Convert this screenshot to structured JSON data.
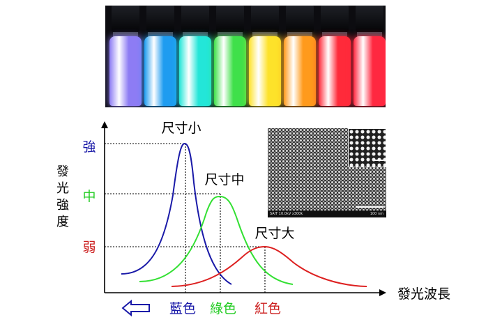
{
  "photo": {
    "vial_colors": [
      "#8d7cf4",
      "#1e9cf0",
      "#23e6d8",
      "#3fe04a",
      "#fde22a",
      "#ff9a1c",
      "#ff2a3a",
      "#ff2840"
    ]
  },
  "sem": {
    "footer_text": "SAIT 10.0kV x300k",
    "scale_label": "100 nm"
  },
  "diagram": {
    "y_axis_label": [
      "發",
      "光",
      "強",
      "度"
    ],
    "x_axis_label": "發光波長",
    "levels": [
      {
        "label": "強",
        "color": "#1a1aa8"
      },
      {
        "label": "中",
        "color": "#22cc22"
      },
      {
        "label": "弱",
        "color": "#cc2020"
      }
    ],
    "curves": [
      {
        "label": "尺寸小",
        "color": "#1a1aa8",
        "peak_level": "強"
      },
      {
        "label": "尺寸中",
        "color": "#33e033",
        "peak_level": "中"
      },
      {
        "label": "尺寸大",
        "color": "#dd2020",
        "peak_level": "弱"
      }
    ],
    "colors_bottom": [
      {
        "label": "藍色",
        "color": "#1a1aa8"
      },
      {
        "label": "綠色",
        "color": "#22cc22"
      },
      {
        "label": "紅色",
        "color": "#cc2020"
      }
    ],
    "arrow_color": "#1a1aa8"
  }
}
